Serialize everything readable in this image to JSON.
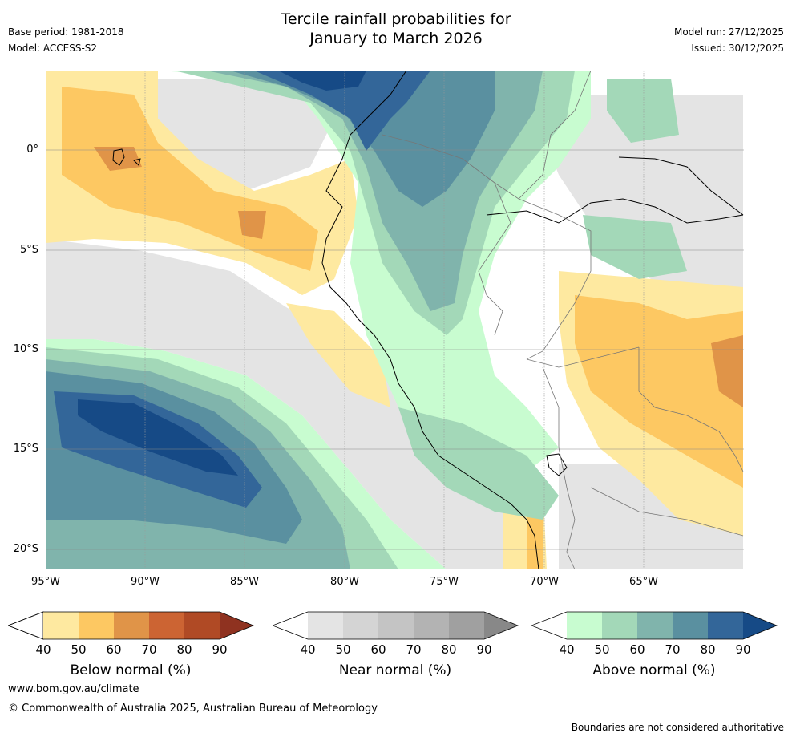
{
  "header": {
    "title_line1": "Tercile rainfall probabilities for",
    "title_line2": "January to March 2026",
    "base_period": "Base period: 1981-2018",
    "model": "Model: ACCESS-S2",
    "model_run": "Model run: 27/12/2025",
    "issued": "Issued: 30/12/2025"
  },
  "map": {
    "lat_labels": [
      "0°",
      "5°S",
      "10°S",
      "15°S",
      "20°S"
    ],
    "lon_labels": [
      "95°W",
      "90°W",
      "85°W",
      "80°W",
      "75°W",
      "70°W",
      "65°W"
    ],
    "extent": {
      "lon": [
        -95,
        -60
      ],
      "lat": [
        -21,
        4
      ]
    }
  },
  "legends": [
    {
      "name": "below",
      "label": "Below normal (%)",
      "ticks": [
        "40",
        "50",
        "60",
        "70",
        "80",
        "90"
      ],
      "colors": [
        "#ffffff",
        "#fee9a0",
        "#fdc862",
        "#e09448",
        "#cc6433",
        "#b04a25",
        "#8f3220"
      ]
    },
    {
      "name": "near",
      "label": "Near normal (%)",
      "ticks": [
        "40",
        "50",
        "60",
        "70",
        "80",
        "90"
      ],
      "colors": [
        "#ffffff",
        "#e4e4e4",
        "#d4d4d4",
        "#c4c4c4",
        "#b3b3b3",
        "#a0a0a0",
        "#888888"
      ]
    },
    {
      "name": "above",
      "label": "Above normal (%)",
      "ticks": [
        "40",
        "50",
        "60",
        "70",
        "80",
        "90"
      ],
      "colors": [
        "#ffffff",
        "#c8fcd0",
        "#a3d8b8",
        "#80b4ac",
        "#5a90a0",
        "#336699",
        "#164a86"
      ]
    }
  ],
  "footer": {
    "url": "www.bom.gov.au/climate",
    "copyright": "© Commonwealth of Australia 2025, Australian Bureau of Meteorology",
    "disclaimer": "Boundaries are not considered authoritative"
  }
}
